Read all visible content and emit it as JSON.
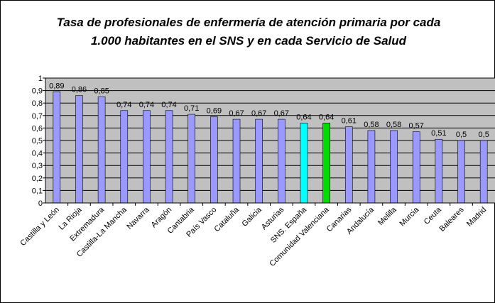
{
  "chart_data": {
    "type": "bar",
    "title": [
      "Tasa de profesionales de enfermería de atención primaria por cada",
      "1.000 habitantes en el SNS y en cada Servicio de Salud"
    ],
    "categories": [
      "Castilla y León",
      "La Rioja",
      "Extremadura",
      "Castilla-La Mancha",
      "Navarra",
      "Aragón",
      "Cantabria",
      "País Vasco",
      "Cataluña",
      "Galicia",
      "Asturias",
      "SNS. España",
      "Comunidad Valenciana",
      "Canarias",
      "Andalucía",
      "Melilla",
      "Murcia",
      "Ceuta",
      "Baleares",
      "Madrid"
    ],
    "values": [
      0.89,
      0.86,
      0.85,
      0.74,
      0.74,
      0.74,
      0.71,
      0.69,
      0.67,
      0.67,
      0.67,
      0.64,
      0.64,
      0.61,
      0.58,
      0.58,
      0.57,
      0.51,
      0.5,
      0.5
    ],
    "value_labels": [
      "0,89",
      "0,86",
      "0,85",
      "0,74",
      "0,74",
      "0,74",
      "0,71",
      "0,69",
      "0,67",
      "0,67",
      "0,67",
      "0,64",
      "0,64",
      "0,61",
      "0,58",
      "0,58",
      "0,57",
      "0,51",
      "0,5",
      "0,5"
    ],
    "colors": [
      "#9999ff",
      "#9999ff",
      "#9999ff",
      "#9999ff",
      "#9999ff",
      "#9999ff",
      "#9999ff",
      "#9999ff",
      "#9999ff",
      "#9999ff",
      "#9999ff",
      "#00ffff",
      "#00dd00",
      "#9999ff",
      "#9999ff",
      "#9999ff",
      "#9999ff",
      "#9999ff",
      "#9999ff",
      "#9999ff"
    ],
    "ylim": [
      0,
      1
    ],
    "yticks": [
      0,
      {
        "value": 0.1,
        "label": "0,1"
      },
      {
        "value": 0.2,
        "label": "0,2"
      },
      {
        "value": 0.3,
        "label": "0,3"
      },
      {
        "value": 0.4,
        "label": "0,4"
      },
      {
        "value": 0.5,
        "label": "0,5"
      },
      {
        "value": 0.6,
        "label": "0,6"
      },
      {
        "value": 0.7,
        "label": "0,7"
      },
      {
        "value": 0.8,
        "label": "0,8"
      },
      {
        "value": 0.9,
        "label": "0,9"
      },
      1
    ],
    "grid": true
  }
}
